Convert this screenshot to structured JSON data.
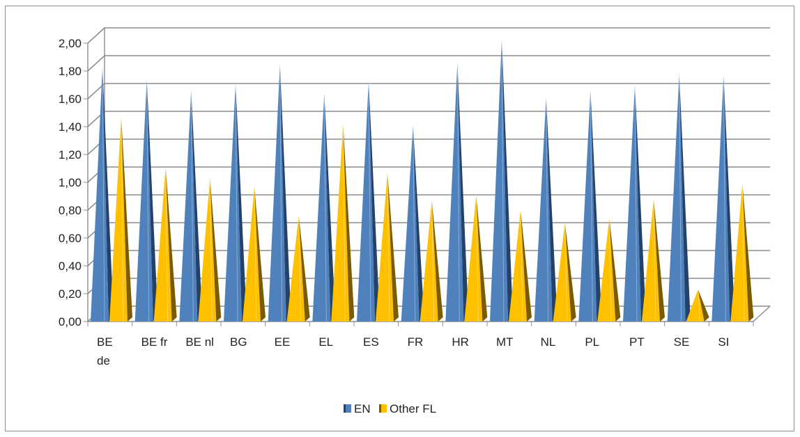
{
  "chart_data": {
    "type": "bar",
    "style": "3d-cone",
    "categories": [
      [
        "BE",
        "de"
      ],
      [
        "BE fr"
      ],
      [
        "BE nl"
      ],
      [
        "BG"
      ],
      [
        "EE"
      ],
      [
        "EL"
      ],
      [
        "ES"
      ],
      [
        "FR"
      ],
      [
        "HR"
      ],
      [
        "MT"
      ],
      [
        "NL"
      ],
      [
        "PL"
      ],
      [
        "PT"
      ],
      [
        "SE"
      ],
      [
        "SI"
      ]
    ],
    "series": [
      {
        "name": "EN",
        "color": "#4f81bd",
        "values": [
          1.77,
          1.68,
          1.6,
          1.65,
          1.79,
          1.58,
          1.67,
          1.35,
          1.8,
          1.97,
          1.55,
          1.6,
          1.64,
          1.72,
          1.71
        ]
      },
      {
        "name": "Other FL",
        "color": "#ffc000",
        "values": [
          1.41,
          1.05,
          0.97,
          0.91,
          0.7,
          1.36,
          1.01,
          0.81,
          0.85,
          0.74,
          0.65,
          0.68,
          0.82,
          0.17,
          0.93
        ]
      }
    ],
    "y_ticks": [
      "0,00",
      "0,20",
      "0,40",
      "0,60",
      "0,80",
      "1,00",
      "1,20",
      "1,40",
      "1,60",
      "1,80",
      "2,00"
    ],
    "ylim": [
      0,
      2
    ],
    "grid": true,
    "legend_position": "bottom"
  }
}
